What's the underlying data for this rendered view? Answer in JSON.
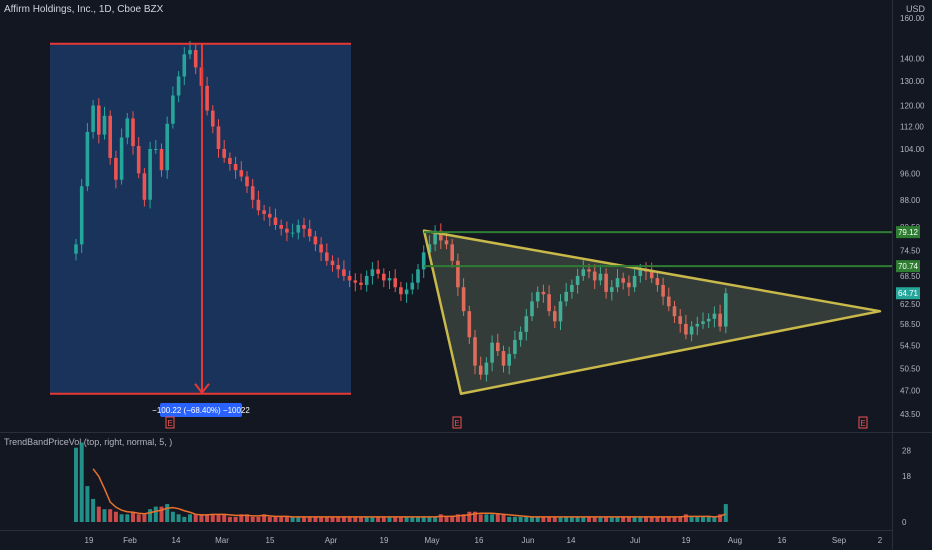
{
  "header": {
    "title": "Affirm Holdings, Inc., 1D, Cboe BZX",
    "currency": "USD"
  },
  "volume_indicator": {
    "label": "TrendBandPriceVol (top, right, normal, 5, )"
  },
  "measure_label": "−100.22 (−68.40%) −10022",
  "earnings_marker": "E",
  "colors": {
    "background": "#131722",
    "up": "#26a69a",
    "down": "#ef5350",
    "triangle": "#c9b84a",
    "resistance": "#2e7d32",
    "measure_box": "#1c3d6e",
    "measure_line": "#e53935",
    "volume_ma": "#e8702a"
  },
  "chart_data": [
    {
      "type": "candlestick",
      "title": "Affirm Holdings, Inc., 1D, Cboe BZX",
      "price_axis": {
        "ticks": [
          "160.00",
          "140.00",
          "130.00",
          "120.00",
          "112.00",
          "104.00",
          "96.00",
          "88.00",
          "80.50",
          "74.50",
          "68.50",
          "62.50",
          "58.50",
          "54.50",
          "50.50",
          "47.00",
          "43.50"
        ],
        "scale": "log",
        "range": [
          41.5,
          160
        ]
      },
      "time_axis": {
        "ticks": [
          "19",
          "Feb",
          "14",
          "Mar",
          "15",
          "Apr",
          "19",
          "May",
          "16",
          "Jun",
          "14",
          "Jul",
          "19",
          "Aug",
          "16",
          "Sep",
          "2"
        ]
      },
      "price_labels": [
        {
          "text": "79.12",
          "value": 79.12
        },
        {
          "text": "70.74",
          "value": 70.74
        },
        {
          "text": "64.71",
          "value": 64.71
        }
      ],
      "annotations": {
        "measure": {
          "from": 147,
          "to": 46.5,
          "change": "−100.22 (−68.40%) −10022"
        },
        "triangle": {
          "apex_high": 79.5,
          "apex_low": 46.5,
          "converge": 61.0
        },
        "resistance_lines": [
          79.12,
          70.74
        ]
      },
      "closes": [
        76,
        92,
        110,
        120,
        109,
        116,
        101,
        94,
        108,
        115,
        105,
        96,
        88,
        104,
        104,
        97,
        113,
        124,
        132,
        142,
        144,
        136,
        128,
        118,
        112,
        104,
        101,
        99,
        97,
        95,
        92,
        88,
        85,
        84,
        83,
        81,
        80,
        79,
        79,
        81,
        80,
        78,
        76,
        74,
        72,
        71,
        70,
        68.5,
        67.5,
        67,
        66.5,
        68.5,
        70,
        69,
        67.5,
        68,
        66,
        64.5,
        65.5,
        67,
        70,
        74,
        76,
        79.5,
        77,
        76,
        72,
        66,
        61,
        56,
        51,
        49.5,
        51.5,
        55,
        53.5,
        51,
        53,
        55.5,
        57,
        60,
        63,
        65,
        64.5,
        61,
        59,
        63,
        65,
        66.5,
        68.5,
        70,
        69.5,
        67.5,
        69,
        65,
        66,
        68,
        67,
        66,
        68.5,
        70,
        69.5,
        68,
        66.5,
        64,
        62,
        60,
        58.5,
        56.5,
        58,
        58.5,
        59,
        59.5,
        60.5,
        58,
        64.7
      ]
    },
    {
      "type": "bar",
      "title": "TrendBandPriceVol (top, right, normal, 5, )",
      "axis_ticks": [
        "28",
        "18",
        "0"
      ],
      "values": [
        29,
        31,
        14,
        9,
        6,
        5,
        5,
        4,
        3,
        3,
        4,
        3,
        3,
        5,
        6,
        6,
        7,
        4,
        3,
        2,
        3,
        3,
        3,
        3,
        3,
        3,
        3,
        2,
        2,
        3,
        3,
        2,
        2,
        3,
        2,
        2,
        2,
        2,
        2,
        2,
        2,
        2,
        2,
        2,
        2,
        2,
        2,
        2,
        2,
        2,
        2,
        2,
        2,
        2,
        2,
        2,
        2,
        2,
        2,
        2,
        2,
        2,
        2,
        2,
        3,
        2,
        2,
        3,
        3,
        4,
        4,
        3,
        3,
        3,
        3,
        3,
        2,
        2,
        2,
        2,
        2,
        2,
        2,
        2,
        2,
        2,
        2,
        2,
        2,
        2,
        2,
        2,
        2,
        2,
        2,
        2,
        2,
        2,
        2,
        2,
        2,
        2,
        2,
        2,
        2,
        2,
        2,
        3,
        2,
        2,
        2,
        2,
        2,
        3,
        7
      ]
    }
  ]
}
